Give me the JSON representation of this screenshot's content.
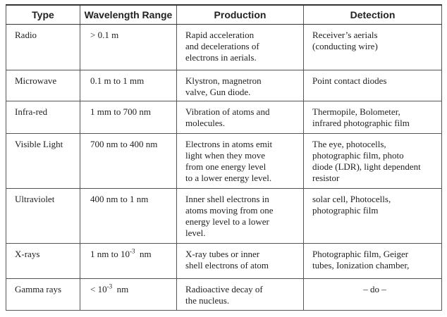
{
  "table": {
    "header": [
      "Type",
      "Wavelength Range",
      "Production",
      "Detection"
    ],
    "rows": [
      [
        "Radio",
        "> 0.1 m",
        [
          "Rapid acceleration",
          "and decelerations of",
          "electrons in aerials."
        ],
        [
          "Receiver’s aerials",
          "(conducting wire)"
        ]
      ],
      [
        "Microwave",
        "0.1 m to 1 mm",
        [
          "Klystron, magnetron",
          "valve, Gun diode."
        ],
        [
          "Point contact diodes"
        ]
      ],
      [
        "Infra-red",
        "1 mm to 700 nm",
        [
          "Vibration of atoms and",
          "molecules."
        ],
        [
          "Thermopile, Bolometer,",
          "infrared photographic film"
        ]
      ],
      [
        "Visible Light",
        "700 nm to 400 nm",
        [
          "Electrons in atoms emit",
          "light when they move",
          "from one energy level",
          "to a lower energy level."
        ],
        [
          "The eye, photocells,",
          "photographic film, photo",
          "diode (LDR), light dependent",
          "resistor"
        ]
      ],
      [
        "Ultraviolet",
        "400 nm to 1 nm",
        [
          "Inner shell electrons in",
          "atoms moving from one",
          "energy level to a lower",
          "level."
        ],
        [
          "solar cell, Photocells,",
          "photographic film"
        ]
      ],
      [
        "X-rays",
        {
          "base": "1 nm to 10",
          "sup": "-3",
          "unit": "nm"
        },
        [
          "X-ray tubes or inner",
          "shell electrons of atom"
        ],
        [
          "Photographic film, Geiger",
          "tubes, Ionization chamber,"
        ]
      ],
      [
        "Gamma rays",
        {
          "base": "< 10",
          "sup": "-3",
          "unit": "nm"
        },
        [
          "Radioactive decay of",
          "the nucleus."
        ],
        [
          "– do –"
        ]
      ]
    ]
  }
}
